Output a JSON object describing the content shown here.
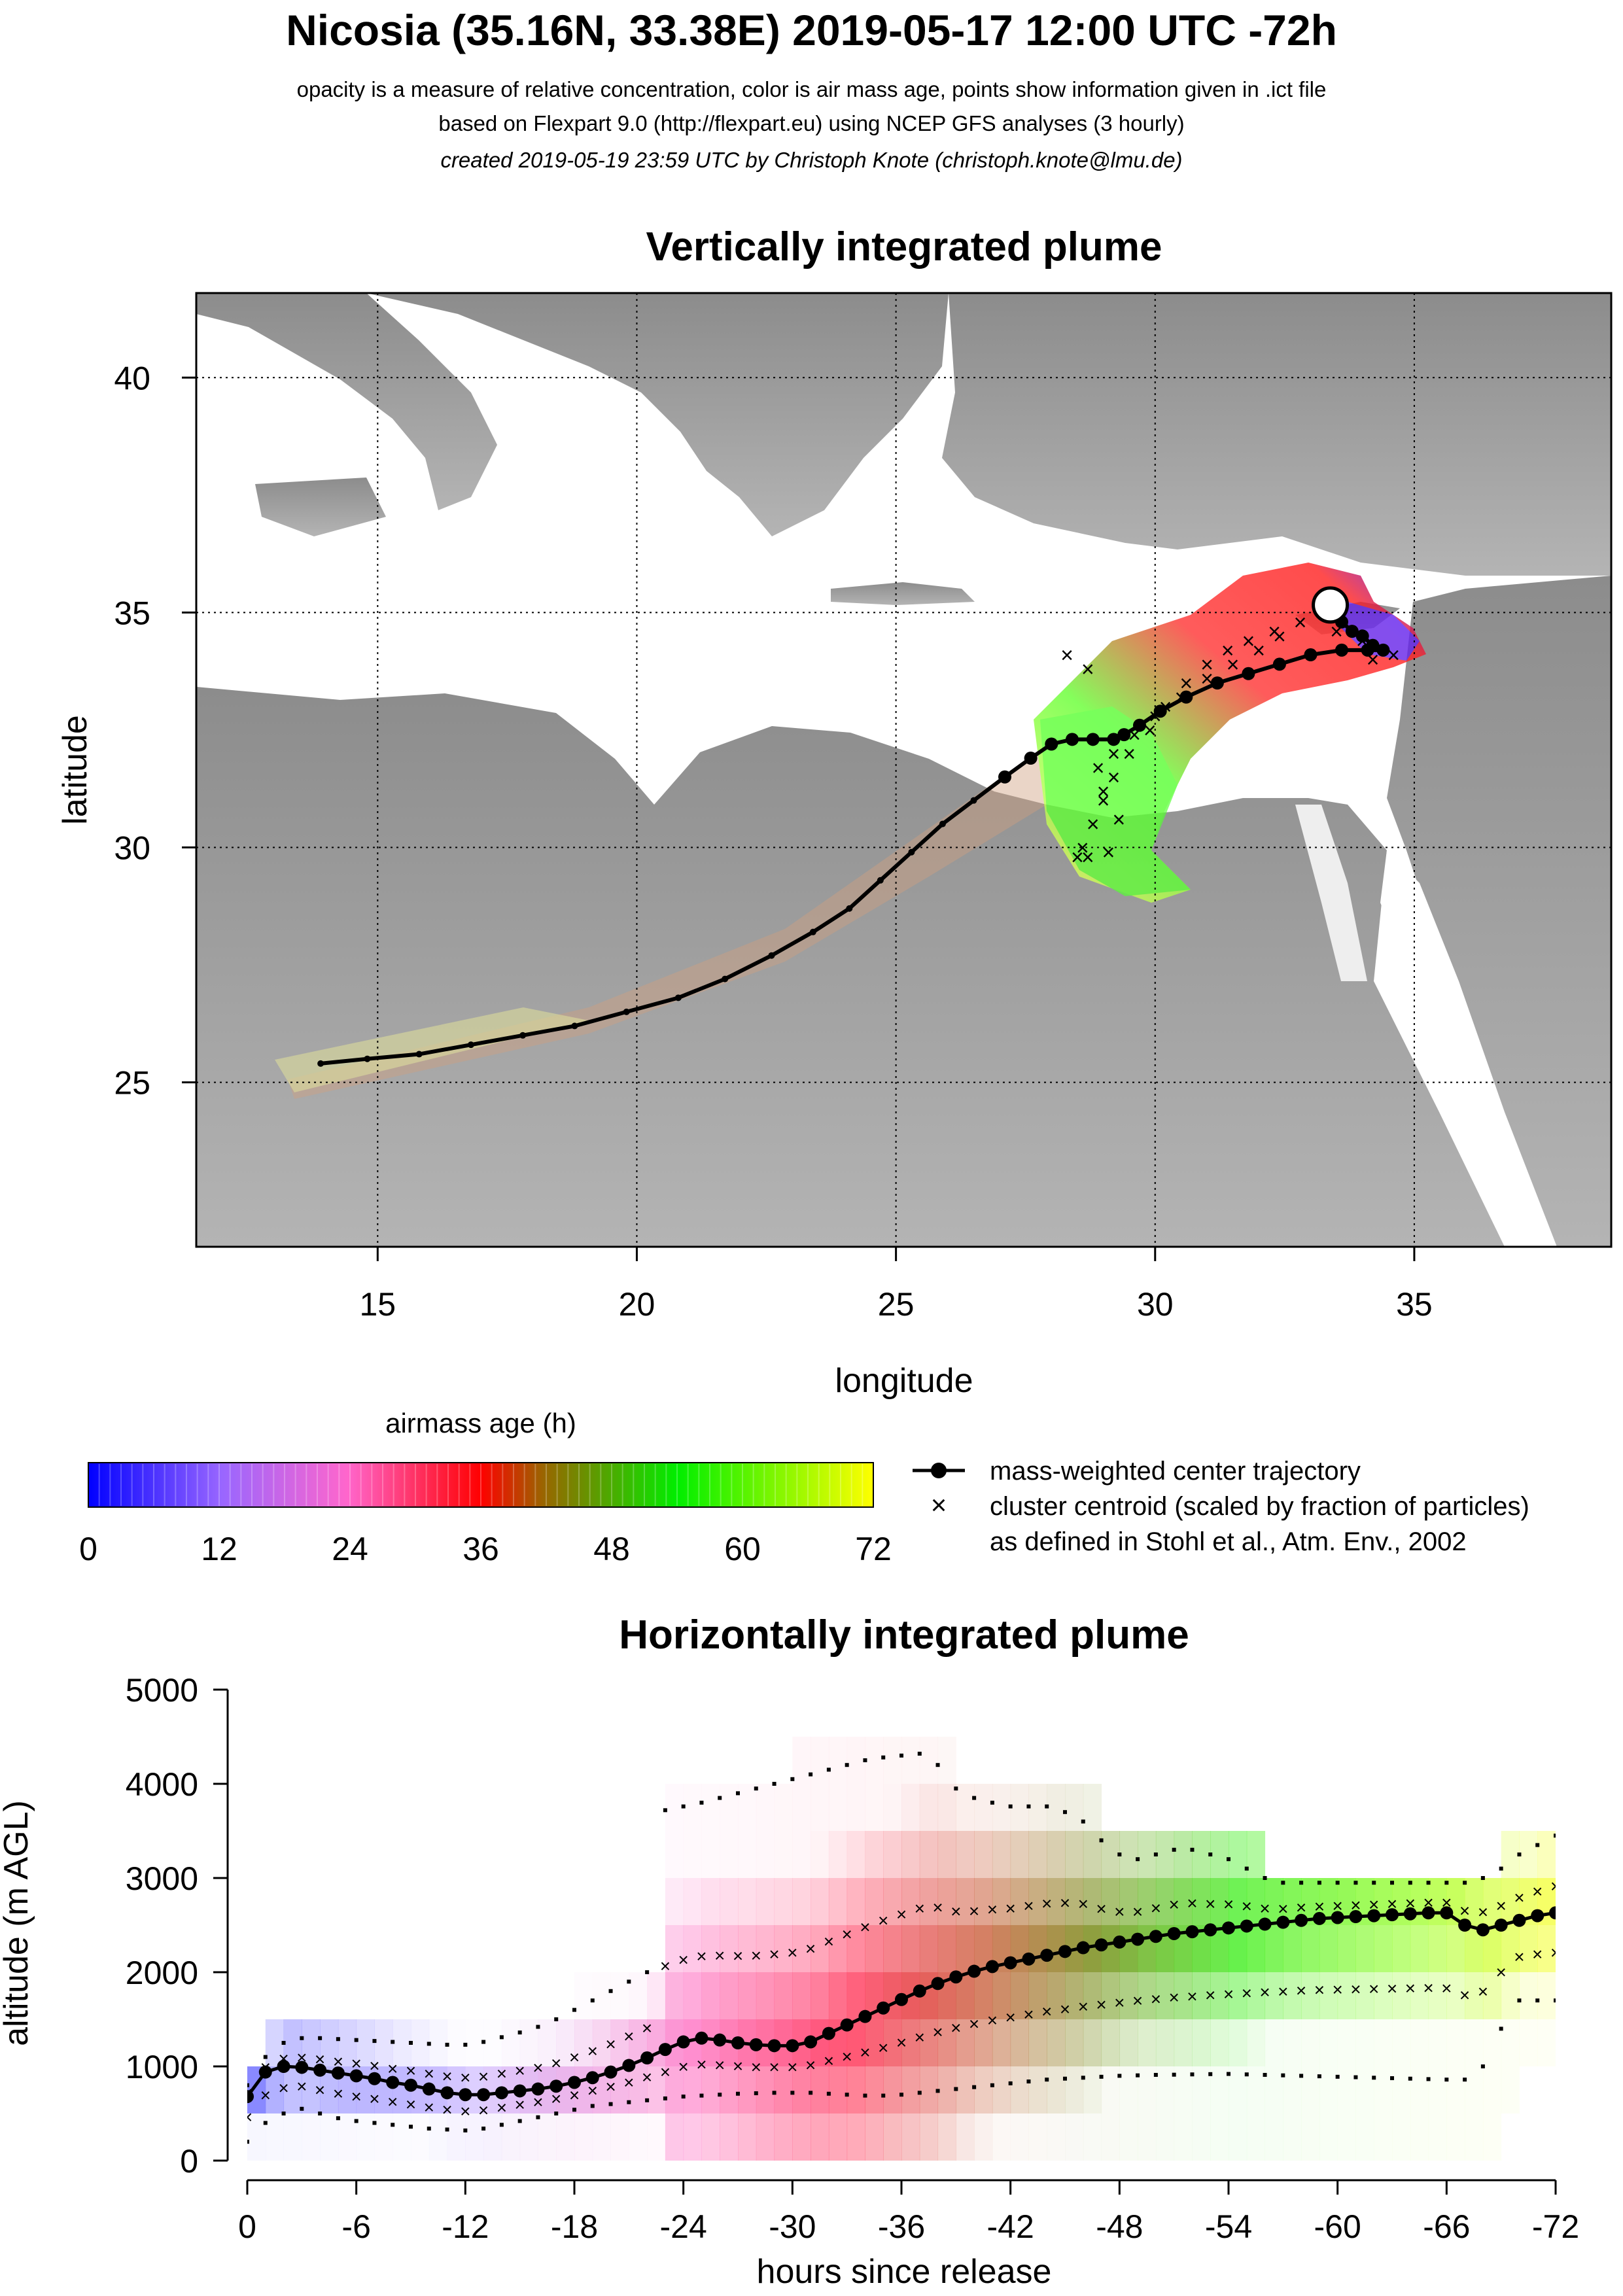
{
  "header": {
    "title": "Nicosia (35.16N, 33.38E) 2019-05-17 12:00 UTC -72h",
    "line1": "opacity is a measure of relative concentration, color is air mass age, points show information given in .ict file",
    "line2": "based on Flexpart 9.0 (http://flexpart.eu) using NCEP GFS analyses (3 hourly)",
    "line3": "created 2019-05-19 23:59 UTC by Christoph Knote (christoph.knote@lmu.de)"
  },
  "colors": {
    "plume_recent": "#3300ff",
    "plume_mid": "#ff2020",
    "plume_old": "#33ff00",
    "plume_oldest": "#ffff33",
    "terrain": "#a8a8a8",
    "sea": "#ffffff"
  },
  "chart_data": [
    {
      "type": "scatter",
      "title": "Vertically integrated plume",
      "xlabel": "longitude",
      "ylabel": "latitude",
      "xlim": [
        11.5,
        38.8
      ],
      "ylim": [
        21.5,
        41.8
      ],
      "xticks": [
        15,
        20,
        25,
        30,
        35
      ],
      "yticks": [
        25,
        30,
        35,
        40
      ],
      "grid": true,
      "release_site": {
        "lon": 33.38,
        "lat": 35.16
      },
      "series": [
        {
          "name": "mass-weighted center trajectory",
          "lon": [
            33.4,
            33.6,
            33.8,
            34.0,
            34.2,
            34.4,
            34.1,
            33.6,
            33.0,
            32.4,
            31.8,
            31.2,
            30.6,
            30.1,
            29.7,
            29.4,
            29.2,
            28.8,
            28.4,
            28.0,
            27.6,
            27.1,
            26.5,
            25.9,
            25.3,
            24.7,
            24.1,
            23.4,
            22.6,
            21.7,
            20.8,
            19.8,
            18.8,
            17.8,
            16.8,
            15.8,
            14.8,
            13.9
          ],
          "lat": [
            35.1,
            34.8,
            34.6,
            34.5,
            34.3,
            34.2,
            34.2,
            34.2,
            34.1,
            33.9,
            33.7,
            33.5,
            33.2,
            32.9,
            32.6,
            32.4,
            32.3,
            32.3,
            32.3,
            32.2,
            31.9,
            31.5,
            31.0,
            30.5,
            29.9,
            29.3,
            28.7,
            28.2,
            27.7,
            27.2,
            26.8,
            26.5,
            26.2,
            26.0,
            25.8,
            25.6,
            25.5,
            25.4
          ]
        },
        {
          "name": "cluster centroid (scaled by fraction of particles)",
          "lon": [
            33.2,
            32.8,
            32.3,
            31.8,
            31.4,
            31.0,
            30.6,
            30.2,
            29.9,
            29.5,
            29.2,
            29.0,
            28.8,
            28.6,
            28.5,
            28.7,
            29.1,
            29.3,
            29.0,
            28.7,
            28.3,
            32.4,
            32.0,
            31.5,
            31.0,
            30.5,
            30.0,
            29.6,
            29.2,
            28.9,
            34.2,
            34.6,
            34.0,
            33.5
          ],
          "lat": [
            35.0,
            34.8,
            34.6,
            34.4,
            34.2,
            33.9,
            33.5,
            33.0,
            32.5,
            32.0,
            31.5,
            31.0,
            30.5,
            30.0,
            29.8,
            29.8,
            29.9,
            30.6,
            31.2,
            33.8,
            34.1,
            34.5,
            34.2,
            33.9,
            33.6,
            33.2,
            32.8,
            32.4,
            32.0,
            31.7,
            34.0,
            34.1,
            34.4,
            34.6
          ]
        }
      ]
    },
    {
      "type": "heatmap",
      "title": "airmass age (h)",
      "categories": [
        "0",
        "12",
        "24",
        "36",
        "48",
        "60",
        "72"
      ],
      "xlim": [
        0,
        72
      ]
    },
    {
      "type": "scatter",
      "title": "Horizontally integrated plume",
      "xlabel": "hours since release",
      "ylabel": "altitude (m AGL)",
      "xlim": [
        0,
        -72
      ],
      "ylim": [
        0,
        5000
      ],
      "xticks": [
        "0",
        "-6",
        "-12",
        "-18",
        "-24",
        "-30",
        "-36",
        "-42",
        "-48",
        "-54",
        "-60",
        "-66",
        "-72"
      ],
      "yticks": [
        "0",
        "1000",
        "2000",
        "3000",
        "4000",
        "5000"
      ],
      "x": [
        0,
        -1,
        -2,
        -3,
        -4,
        -5,
        -6,
        -7,
        -8,
        -9,
        -10,
        -11,
        -12,
        -13,
        -14,
        -15,
        -16,
        -17,
        -18,
        -19,
        -20,
        -21,
        -22,
        -23,
        -24,
        -25,
        -26,
        -27,
        -28,
        -29,
        -30,
        -31,
        -32,
        -33,
        -34,
        -35,
        -36,
        -37,
        -38,
        -39,
        -40,
        -41,
        -42,
        -43,
        -44,
        -45,
        -46,
        -47,
        -48,
        -49,
        -50,
        -51,
        -52,
        -53,
        -54,
        -55,
        -56,
        -57,
        -58,
        -59,
        -60,
        -61,
        -62,
        -63,
        -64,
        -65,
        -66,
        -67,
        -68,
        -69,
        -70,
        -71,
        -72
      ],
      "series": [
        {
          "name": "mass-weighted center trajectory",
          "values": [
            680,
            940,
            1000,
            990,
            960,
            930,
            900,
            870,
            830,
            800,
            760,
            720,
            700,
            700,
            720,
            740,
            760,
            790,
            830,
            880,
            940,
            1010,
            1090,
            1180,
            1260,
            1300,
            1280,
            1250,
            1230,
            1220,
            1220,
            1260,
            1350,
            1440,
            1530,
            1620,
            1710,
            1800,
            1880,
            1950,
            2010,
            2060,
            2100,
            2140,
            2180,
            2220,
            2260,
            2290,
            2320,
            2350,
            2380,
            2410,
            2430,
            2450,
            2470,
            2490,
            2510,
            2530,
            2550,
            2570,
            2580,
            2590,
            2600,
            2610,
            2620,
            2630,
            2630,
            2500,
            2450,
            2500,
            2550,
            2600,
            2630
          ]
        },
        {
          "name": "upper envelope",
          "values": [
            800,
            1100,
            1250,
            1300,
            1300,
            1290,
            1280,
            1270,
            1260,
            1250,
            1240,
            1230,
            1230,
            1260,
            1310,
            1360,
            1420,
            1500,
            1600,
            1700,
            1800,
            1900,
            2000,
            3720,
            3760,
            3800,
            3850,
            3900,
            3950,
            4000,
            4050,
            4100,
            4150,
            4200,
            4250,
            4280,
            4300,
            4320,
            4200,
            3950,
            3850,
            3800,
            3760,
            3760,
            3760,
            3700,
            3600,
            3400,
            3250,
            3200,
            3250,
            3300,
            3300,
            3250,
            3200,
            3100,
            3000,
            2950,
            2950,
            2950,
            2950,
            2950,
            2950,
            2950,
            2950,
            2950,
            2950,
            2950,
            3000,
            3100,
            3250,
            3350,
            3450
          ]
        },
        {
          "name": "lower envelope",
          "values": [
            200,
            400,
            500,
            550,
            500,
            450,
            420,
            400,
            380,
            360,
            340,
            330,
            320,
            340,
            380,
            420,
            460,
            500,
            540,
            580,
            600,
            620,
            640,
            660,
            680,
            690,
            700,
            710,
            715,
            720,
            720,
            720,
            710,
            700,
            690,
            690,
            700,
            720,
            740,
            760,
            780,
            800,
            820,
            840,
            860,
            870,
            880,
            890,
            900,
            905,
            910,
            912,
            915,
            918,
            920,
            915,
            910,
            905,
            900,
            895,
            890,
            885,
            880,
            875,
            870,
            865,
            860,
            860,
            1000,
            1400,
            1700,
            1700,
            1700
          ]
        }
      ]
    }
  ],
  "legend": {
    "center_label": "mass-weighted center trajectory",
    "cluster_label": "cluster centroid (scaled by fraction of particles)",
    "cluster_label2": "as defined in Stohl et al., Atm. Env., 2002"
  }
}
